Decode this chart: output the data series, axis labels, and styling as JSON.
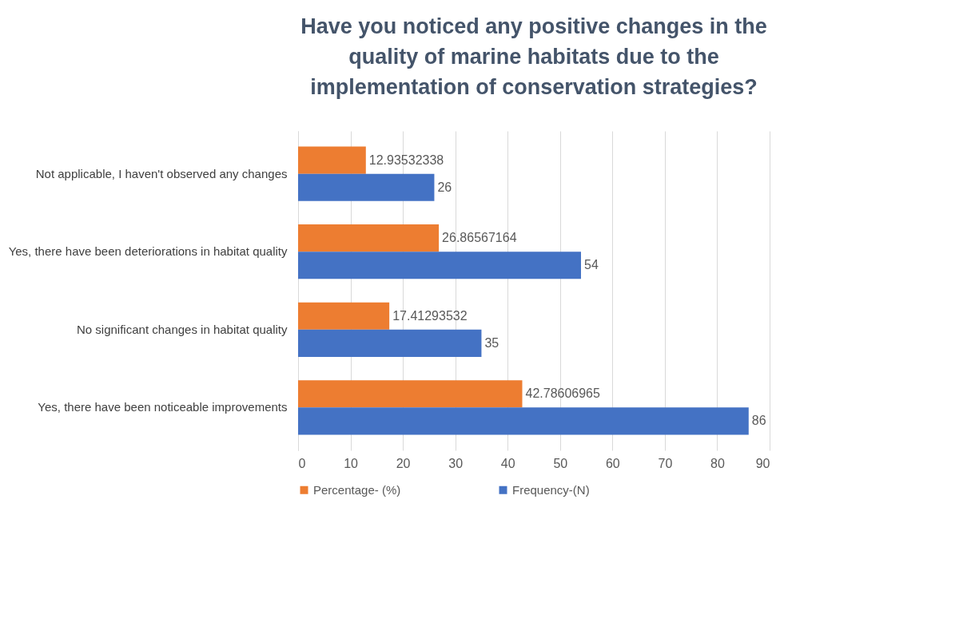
{
  "chart_data": {
    "type": "bar",
    "orientation": "horizontal",
    "title": "Have you noticed any positive changes in the quality of marine habitats due to the implementation of conservation strategies?",
    "categories": [
      "Not applicable, I haven't observed any changes",
      "Yes, there have been deteriorations in habitat quality",
      "No significant changes in habitat quality",
      "Yes, there have been noticeable improvements"
    ],
    "series": [
      {
        "name": "Percentage- (%)",
        "color": "#ed7d31",
        "values": [
          12.93532338,
          26.86567164,
          17.41293532,
          42.78606965
        ]
      },
      {
        "name": "Frequency-(N)",
        "color": "#4472c4",
        "values": [
          26,
          54,
          35,
          86
        ]
      }
    ],
    "xlim": [
      0,
      90
    ],
    "xticks": [
      0,
      10,
      20,
      30,
      40,
      50,
      60,
      70,
      80,
      90
    ],
    "grid": "x",
    "legend": "bottom",
    "data_labels": true
  }
}
